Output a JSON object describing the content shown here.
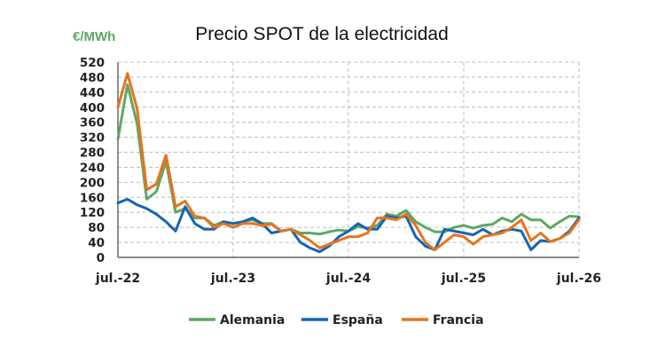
{
  "chart_data": {
    "type": "line",
    "title": "Precio SPOT de la electricidad",
    "ylabel": "€/MWh",
    "xlabel": "",
    "ylim": [
      0,
      520
    ],
    "yticks": [
      "0",
      "40",
      "80",
      "120",
      "160",
      "200",
      "240",
      "280",
      "320",
      "360",
      "400",
      "440",
      "480",
      "520"
    ],
    "ytick_values": [
      0,
      40,
      80,
      120,
      160,
      200,
      240,
      280,
      320,
      360,
      400,
      440,
      480,
      520
    ],
    "x_tick_labels": [
      "jul.-22",
      "jul.-23",
      "jul.-24",
      "jul.-25",
      "jul.-26"
    ],
    "x_tick_index": [
      0,
      12,
      24,
      36,
      48
    ],
    "x_frequency": "monthly",
    "x_start": "jul.-22",
    "x_end": "jul.-26",
    "grid": true,
    "legend_position": "bottom",
    "series": [
      {
        "name": "Alemania",
        "color": "#5fa863",
        "values": [
          315,
          460,
          355,
          155,
          175,
          255,
          120,
          130,
          105,
          105,
          85,
          95,
          90,
          95,
          100,
          90,
          90,
          70,
          75,
          65,
          65,
          62,
          68,
          73,
          70,
          82,
          78,
          85,
          115,
          110,
          125,
          95,
          80,
          68,
          68,
          80,
          85,
          78,
          85,
          88,
          105,
          95,
          115,
          100,
          100,
          78,
          95,
          110,
          108
        ]
      },
      {
        "name": "España",
        "color": "#1565b4",
        "values": [
          145,
          155,
          140,
          130,
          115,
          95,
          70,
          135,
          90,
          75,
          75,
          95,
          90,
          95,
          105,
          90,
          65,
          70,
          75,
          40,
          25,
          15,
          30,
          55,
          70,
          90,
          75,
          75,
          110,
          105,
          110,
          55,
          30,
          20,
          75,
          70,
          65,
          60,
          75,
          60,
          70,
          75,
          70,
          20,
          45,
          42,
          50,
          70,
          105
        ]
      },
      {
        "name": "Francia",
        "color": "#e8731c",
        "values": [
          400,
          490,
          395,
          180,
          195,
          272,
          135,
          150,
          110,
          105,
          80,
          90,
          80,
          90,
          90,
          85,
          88,
          70,
          75,
          60,
          45,
          25,
          35,
          45,
          55,
          55,
          65,
          105,
          105,
          100,
          115,
          85,
          40,
          20,
          40,
          60,
          55,
          35,
          55,
          60,
          65,
          80,
          100,
          45,
          65,
          42,
          50,
          65,
          100
        ]
      }
    ]
  }
}
